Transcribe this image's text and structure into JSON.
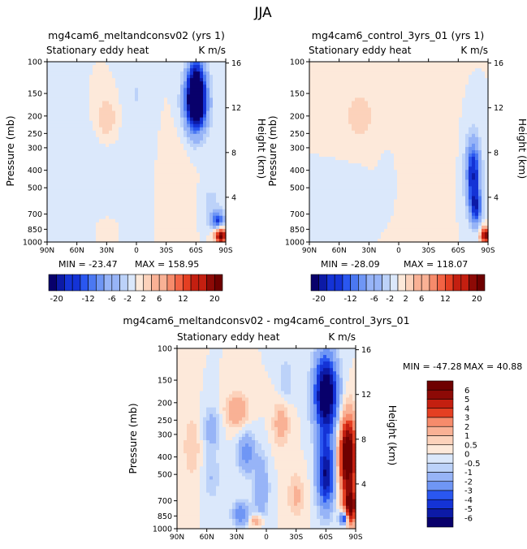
{
  "figure_title": "JJA",
  "chart_data": [
    {
      "type": "heatmap",
      "title": "mg4cam6_meltandconsv02 (yrs 1)",
      "left_label": "Stationary eddy heat",
      "right_label": "K m/s",
      "xlabel": "",
      "ylabel": "Pressure (mb)",
      "y2label": "Height (km)",
      "x_ticks": [
        "90N",
        "60N",
        "30N",
        "0",
        "30S",
        "60S",
        "90S"
      ],
      "x_range": [
        90,
        -90
      ],
      "y_ticks": [
        100,
        150,
        200,
        250,
        300,
        400,
        500,
        700,
        850,
        1000
      ],
      "y_range": [
        100,
        1000
      ],
      "y2_ticks": [
        16,
        12,
        8,
        4
      ],
      "stats": {
        "min_label": "MIN = -23.47",
        "max_label": "MAX = 158.95"
      },
      "features": [
        {
          "lat": -60,
          "p": 170,
          "value": -22,
          "sig_lat": 8,
          "sig_logp": 0.25
        },
        {
          "lat": -60,
          "p": 140,
          "value": -18,
          "sig_lat": 6,
          "sig_logp": 0.3
        },
        {
          "lat": 30,
          "p": 210,
          "value": 4,
          "sig_lat": 8,
          "sig_logp": 0.22
        },
        {
          "lat": 40,
          "p": 400,
          "value": -2,
          "sig_lat": 22,
          "sig_logp": 0.4
        },
        {
          "lat": 0,
          "p": 150,
          "value": -2,
          "sig_lat": 10,
          "sig_logp": 0.5
        },
        {
          "lat": -85,
          "p": 920,
          "value": 22,
          "sig_lat": 4,
          "sig_logp": 0.07
        },
        {
          "lat": -82,
          "p": 760,
          "value": -14,
          "sig_lat": 5,
          "sig_logp": 0.08
        },
        {
          "lat": -75,
          "p": 600,
          "value": -3,
          "sig_lat": 6,
          "sig_logp": 0.15
        },
        {
          "lat": 30,
          "p": 850,
          "value": 2,
          "sig_lat": 6,
          "sig_logp": 0.1
        },
        {
          "lat": -40,
          "p": 400,
          "value": 1,
          "sig_lat": 10,
          "sig_logp": 0.4
        }
      ],
      "colorbar": {
        "levels": [
          -20,
          -18,
          -16,
          -14,
          -12,
          -10,
          -8,
          -6,
          -4,
          -2,
          0,
          2,
          4,
          6,
          8,
          10,
          12,
          14,
          16,
          18,
          20
        ],
        "labels": [
          "-20",
          "-12",
          "-6",
          "-2",
          "2",
          "6",
          "12",
          "20"
        ]
      }
    },
    {
      "type": "heatmap",
      "title": "mg4cam6_control_3yrs_01 (yrs 1)",
      "left_label": "Stationary eddy heat",
      "right_label": "K m/s",
      "xlabel": "",
      "ylabel": "Pressure (mb)",
      "y2label": "Height (km)",
      "x_ticks": [
        "90N",
        "60N",
        "30N",
        "0",
        "30S",
        "60S",
        "90S"
      ],
      "x_range": [
        90,
        -90
      ],
      "y_ticks": [
        100,
        150,
        200,
        250,
        300,
        400,
        500,
        700,
        850,
        1000
      ],
      "y_range": [
        100,
        1000
      ],
      "y2_ticks": [
        16,
        12,
        8,
        4
      ],
      "stats": {
        "min_label": "MIN = -28.09",
        "max_label": "MAX = 118.07"
      },
      "features": [
        {
          "lat": -75,
          "p": 420,
          "value": -18,
          "sig_lat": 5,
          "sig_logp": 0.3
        },
        {
          "lat": -78,
          "p": 650,
          "value": -14,
          "sig_lat": 4,
          "sig_logp": 0.15
        },
        {
          "lat": -87,
          "p": 920,
          "value": 22,
          "sig_lat": 3,
          "sig_logp": 0.07
        },
        {
          "lat": 40,
          "p": 200,
          "value": 2.5,
          "sig_lat": 15,
          "sig_logp": 0.35
        },
        {
          "lat": -10,
          "p": 300,
          "value": 1.5,
          "sig_lat": 20,
          "sig_logp": 0.5
        },
        {
          "lat": 10,
          "p": 400,
          "value": -1.5,
          "sig_lat": 8,
          "sig_logp": 0.3
        },
        {
          "lat": 45,
          "p": 500,
          "value": -1,
          "sig_lat": 15,
          "sig_logp": 0.3
        }
      ],
      "colorbar": {
        "levels": [
          -20,
          -18,
          -16,
          -14,
          -12,
          -10,
          -8,
          -6,
          -4,
          -2,
          0,
          2,
          4,
          6,
          8,
          10,
          12,
          14,
          16,
          18,
          20
        ],
        "labels": [
          "-20",
          "-12",
          "-6",
          "-2",
          "2",
          "6",
          "12",
          "20"
        ]
      }
    },
    {
      "type": "heatmap",
      "title": "mg4cam6_meltandconsv02 - mg4cam6_control_3yrs_01",
      "left_label": "Stationary eddy heat",
      "right_label": "K m/s",
      "xlabel": "",
      "ylabel": "Pressure (mb)",
      "y2label": "Height (km)",
      "x_ticks": [
        "90N",
        "60N",
        "30N",
        "0",
        "30S",
        "60S",
        "90S"
      ],
      "x_range": [
        90,
        -90
      ],
      "y_ticks": [
        100,
        150,
        200,
        250,
        300,
        400,
        500,
        700,
        850,
        1000
      ],
      "y_range": [
        100,
        1000
      ],
      "y2_ticks": [
        16,
        12,
        8,
        4
      ],
      "stats": {
        "min_label": "MIN = -47.28",
        "max_label": "MAX =   40.88"
      },
      "features": [
        {
          "lat": -60,
          "p": 180,
          "value": -8,
          "sig_lat": 8,
          "sig_logp": 0.35
        },
        {
          "lat": -60,
          "p": 500,
          "value": -6,
          "sig_lat": 6,
          "sig_logp": 0.3
        },
        {
          "lat": -82,
          "p": 400,
          "value": 8,
          "sig_lat": 6,
          "sig_logp": 0.35
        },
        {
          "lat": -85,
          "p": 750,
          "value": 6,
          "sig_lat": 4,
          "sig_logp": 0.15
        },
        {
          "lat": -78,
          "p": 880,
          "value": -5,
          "sig_lat": 3,
          "sig_logp": 0.06
        },
        {
          "lat": 30,
          "p": 220,
          "value": 2,
          "sig_lat": 8,
          "sig_logp": 0.15
        },
        {
          "lat": 20,
          "p": 380,
          "value": -2.5,
          "sig_lat": 6,
          "sig_logp": 0.18
        },
        {
          "lat": 25,
          "p": 830,
          "value": -3,
          "sig_lat": 6,
          "sig_logp": 0.1
        },
        {
          "lat": 5,
          "p": 600,
          "value": -2,
          "sig_lat": 5,
          "sig_logp": 0.3
        },
        {
          "lat": 55,
          "p": 280,
          "value": -1.5,
          "sig_lat": 6,
          "sig_logp": 0.2
        },
        {
          "lat": 55,
          "p": 520,
          "value": -1,
          "sig_lat": 6,
          "sig_logp": 0.2
        },
        {
          "lat": 75,
          "p": 350,
          "value": 1,
          "sig_lat": 6,
          "sig_logp": 0.3
        },
        {
          "lat": -15,
          "p": 260,
          "value": 1.5,
          "sig_lat": 6,
          "sig_logp": 0.2
        },
        {
          "lat": -30,
          "p": 650,
          "value": 1.2,
          "sig_lat": 6,
          "sig_logp": 0.2
        },
        {
          "lat": -20,
          "p": 150,
          "value": -1,
          "sig_lat": 5,
          "sig_logp": 0.2
        },
        {
          "lat": 10,
          "p": 900,
          "value": 2,
          "sig_lat": 5,
          "sig_logp": 0.06
        }
      ],
      "colorbar": {
        "levels": [
          -6,
          -5,
          -4,
          -3,
          -2,
          -1,
          -0.5,
          0,
          0.5,
          1,
          2,
          3,
          4,
          5,
          6
        ],
        "labels": [
          "6",
          "5",
          "4",
          "3",
          "2",
          "1",
          "0.5",
          "0",
          "-0.5",
          "-1",
          "-2",
          "-3",
          "-4",
          "-5",
          "-6"
        ]
      }
    }
  ]
}
